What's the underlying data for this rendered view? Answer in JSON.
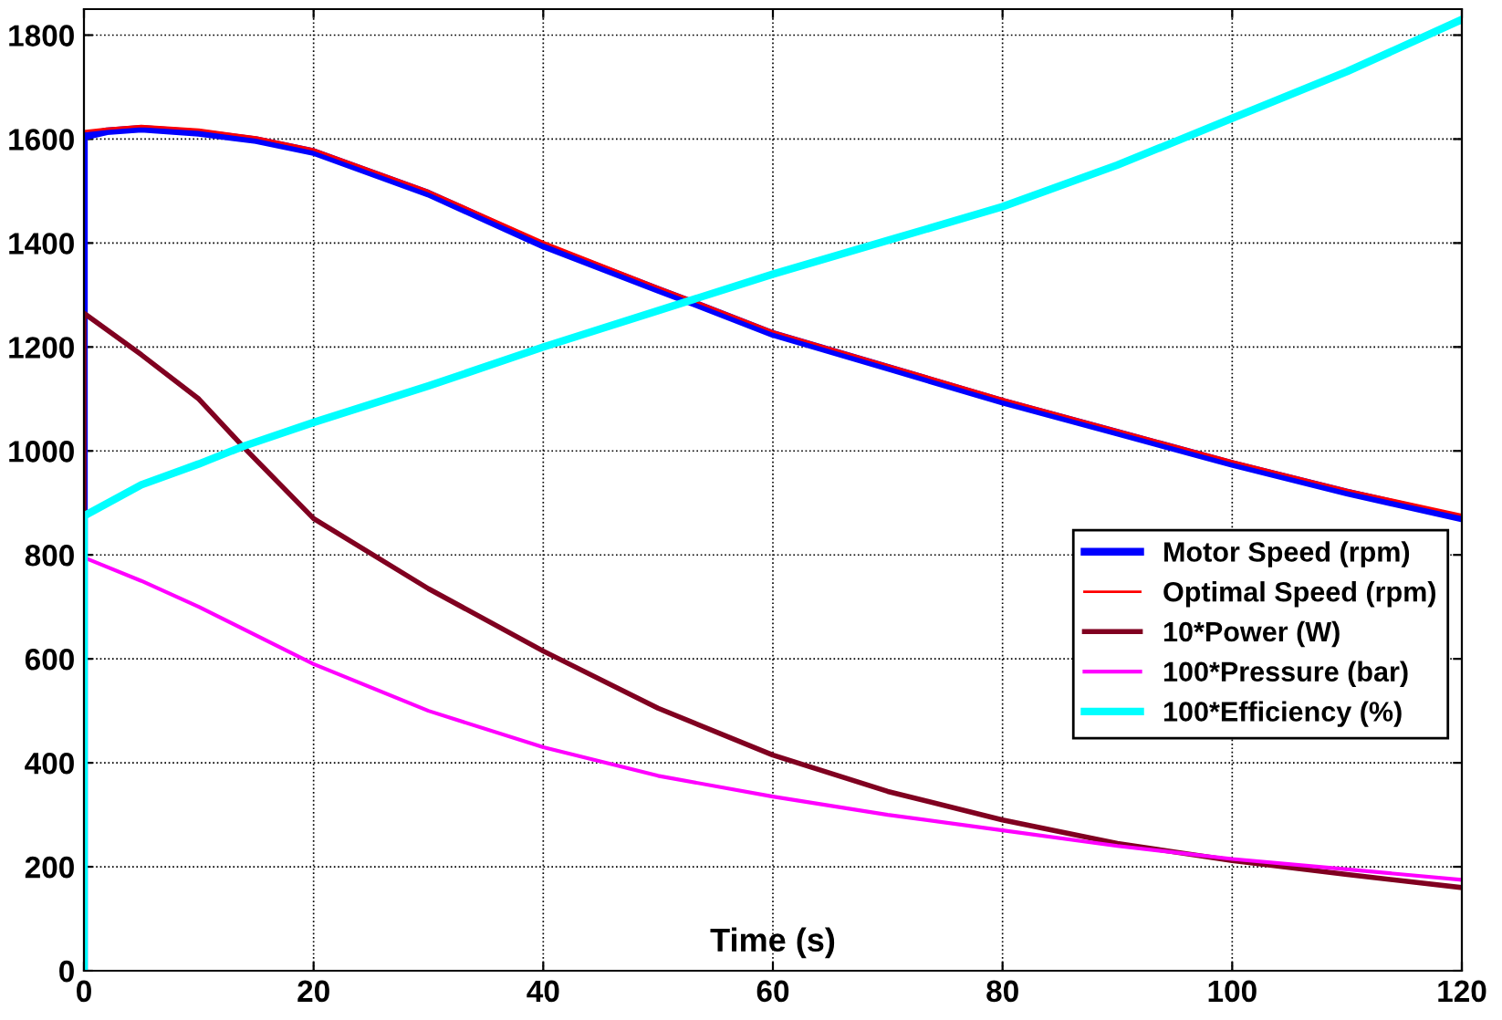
{
  "chart_data": {
    "type": "line",
    "xlabel": "Time (s)",
    "xlim": [
      0,
      120
    ],
    "ylim": [
      0,
      1850
    ],
    "xticks": [
      0,
      20,
      40,
      60,
      80,
      100,
      120
    ],
    "yticks": [
      0,
      200,
      400,
      600,
      800,
      1000,
      1200,
      1400,
      1600,
      1800
    ],
    "grid": true,
    "legend": "right",
    "marker": "none",
    "line_style": "solid",
    "series": [
      {
        "name": "Motor Speed (rpm)",
        "color": "#0000ff",
        "x": [
          0,
          0,
          2,
          5,
          10,
          15,
          20,
          30,
          40,
          50,
          53,
          60,
          70,
          80,
          90,
          100,
          110,
          120
        ],
        "values": [
          0,
          1605,
          1615,
          1620,
          1612,
          1598,
          1575,
          1495,
          1395,
          1310,
          1285,
          1225,
          1160,
          1095,
          1035,
          975,
          920,
          870
        ]
      },
      {
        "name": "Optimal Speed (rpm)",
        "color": "#ff0000",
        "x": [
          0,
          0,
          2,
          5,
          10,
          15,
          20,
          30,
          40,
          50,
          53,
          60,
          70,
          80,
          90,
          100,
          110,
          120
        ],
        "values": [
          1615,
          1615,
          1620,
          1625,
          1618,
          1603,
          1580,
          1500,
          1402,
          1315,
          1290,
          1230,
          1165,
          1100,
          1040,
          980,
          925,
          877
        ]
      },
      {
        "name": "10*Power (W)",
        "color": "#800020",
        "x": [
          0,
          0,
          5,
          10,
          14,
          20,
          30,
          40,
          50,
          60,
          70,
          80,
          90,
          100,
          110,
          120
        ],
        "values": [
          0,
          1265,
          1185,
          1100,
          1005,
          870,
          735,
          615,
          505,
          415,
          345,
          290,
          245,
          212,
          185,
          160
        ]
      },
      {
        "name": "100*Pressure (bar)",
        "color": "#ff00ff",
        "x": [
          0,
          0,
          5,
          10,
          20,
          30,
          40,
          50,
          60,
          70,
          80,
          90,
          100,
          110,
          120
        ],
        "values": [
          0,
          795,
          750,
          700,
          590,
          500,
          430,
          375,
          335,
          300,
          270,
          240,
          215,
          195,
          175
        ]
      },
      {
        "name": "100*Efficiency (%)",
        "color": "#00ffff",
        "x": [
          0,
          0,
          5,
          10,
          14,
          20,
          30,
          40,
          50,
          60,
          70,
          80,
          90,
          100,
          110,
          120
        ],
        "values": [
          0,
          875,
          935,
          975,
          1010,
          1055,
          1125,
          1200,
          1270,
          1340,
          1405,
          1470,
          1550,
          1640,
          1730,
          1830
        ]
      }
    ]
  }
}
